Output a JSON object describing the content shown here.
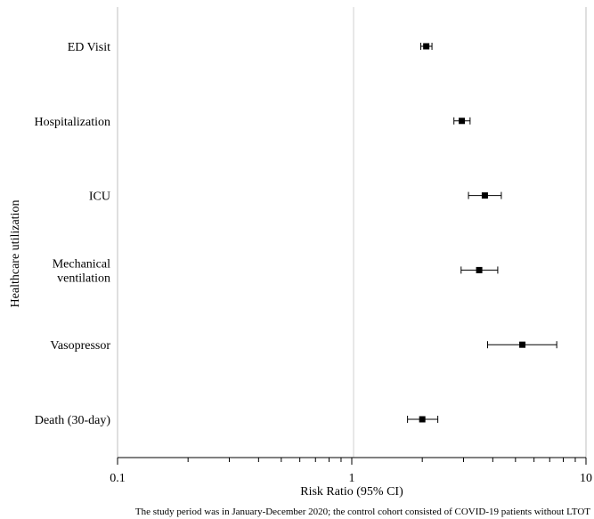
{
  "chart_data": {
    "type": "forest",
    "xlabel": "Risk Ratio (95% CI)",
    "ylabel": "Healthcare utilization",
    "xscale": "log",
    "xlim": [
      0.1,
      10
    ],
    "xticks": [
      {
        "value": 0.1,
        "label": "0.1"
      },
      {
        "value": 1,
        "label": "1"
      },
      {
        "value": 10,
        "label": "10"
      }
    ],
    "reference_line": 1,
    "grid": false,
    "rows": [
      {
        "label": [
          "ED Visit"
        ],
        "estimate": 2.08,
        "ci_low": 1.97,
        "ci_high": 2.2
      },
      {
        "label": [
          "Hospitalization"
        ],
        "estimate": 2.95,
        "ci_low": 2.73,
        "ci_high": 3.2
      },
      {
        "label": [
          "ICU"
        ],
        "estimate": 3.7,
        "ci_low": 3.15,
        "ci_high": 4.35
      },
      {
        "label": [
          "Mechanical",
          "ventilation"
        ],
        "estimate": 3.5,
        "ci_low": 2.93,
        "ci_high": 4.2
      },
      {
        "label": [
          "Vasopressor"
        ],
        "estimate": 5.35,
        "ci_low": 3.8,
        "ci_high": 7.5
      },
      {
        "label": [
          "Death (30-day)"
        ],
        "estimate": 2.0,
        "ci_low": 1.73,
        "ci_high": 2.33
      }
    ]
  },
  "footnote": "The study period was in January-December 2020; the control cohort consisted of COVID-19 patients without LTOT"
}
